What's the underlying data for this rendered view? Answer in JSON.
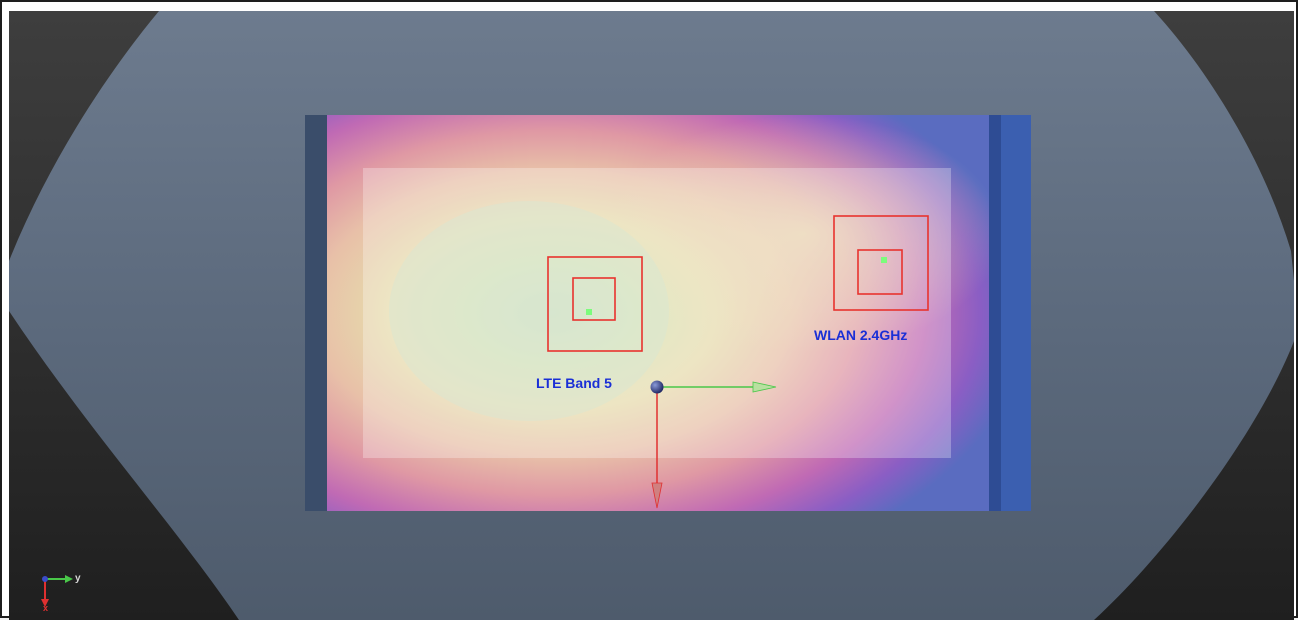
{
  "antennas": [
    {
      "label": "LTE Band 5"
    },
    {
      "label": "WLAN 2.4GHz"
    }
  ],
  "axis_triad": {
    "y_label": "y",
    "x_label": "x"
  },
  "colors": {
    "background_dark": "#2c2c2c",
    "phantom": "#5d6b7d",
    "region_outline": "#e8332e",
    "label": "#1a2fd6",
    "axis_x": "#e03030",
    "axis_y": "#49c749",
    "hotspot": "#7cfc7c"
  },
  "icons": {
    "origin": "origin-sphere-icon",
    "triad": "axis-triad-icon"
  }
}
